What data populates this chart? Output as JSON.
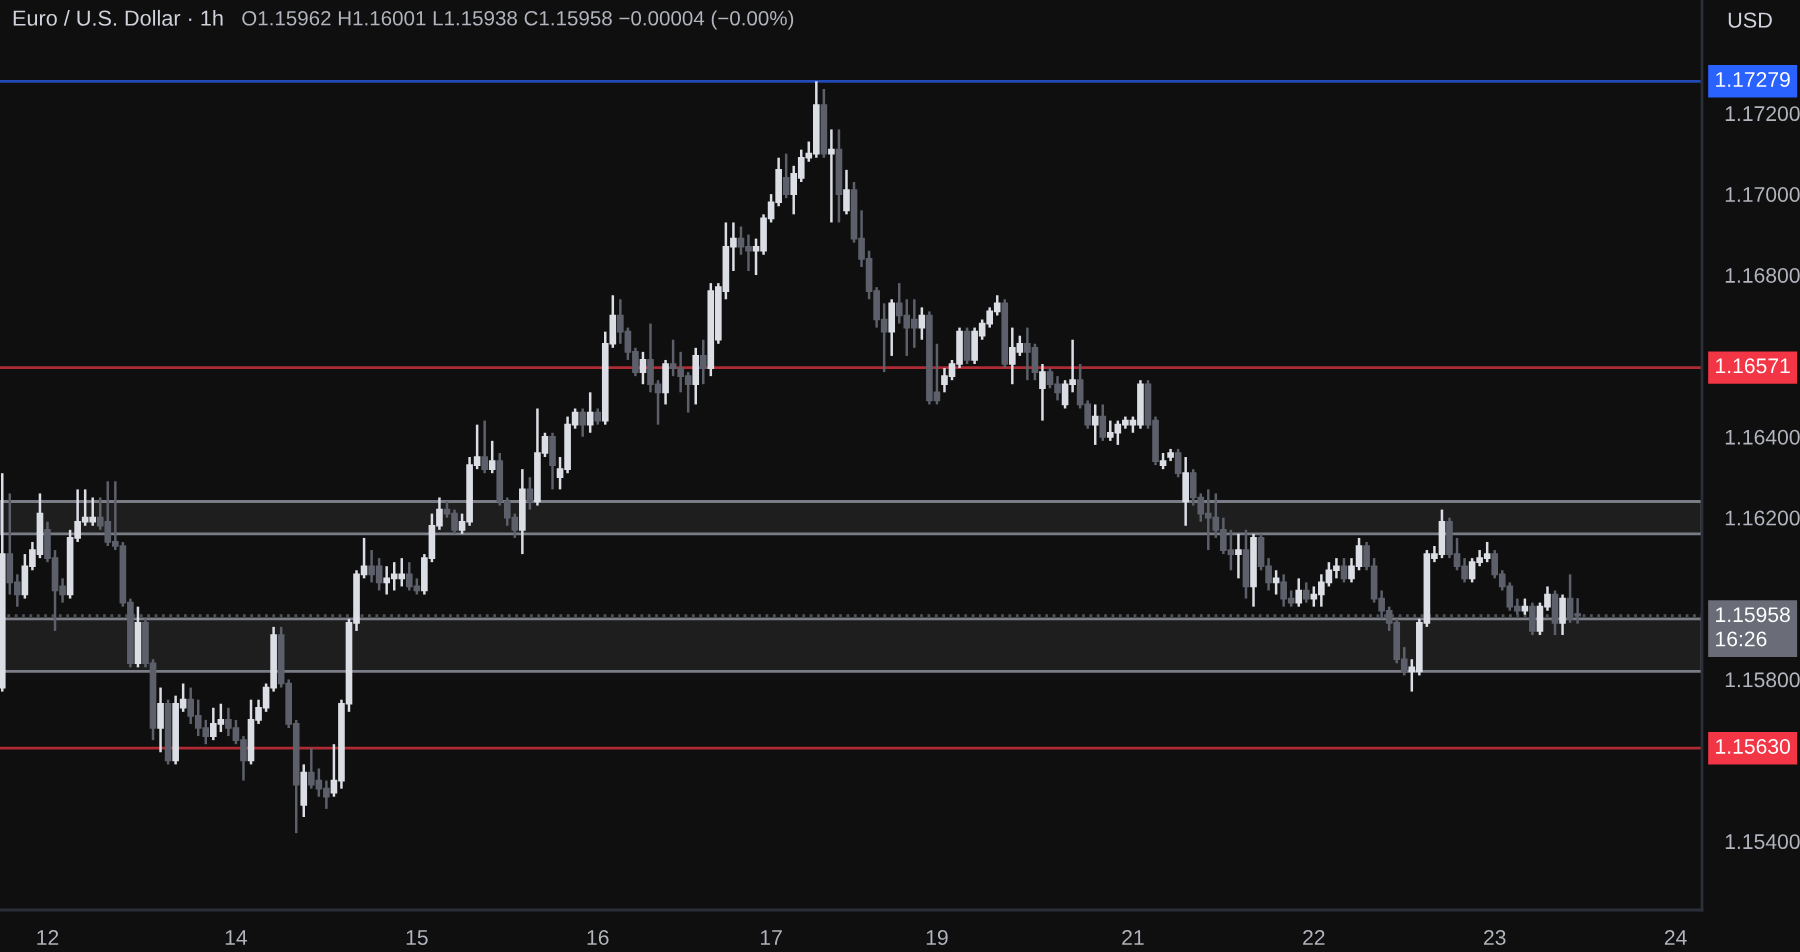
{
  "chart_data": {
    "type": "candlestick",
    "title": "Euro / U.S. Dollar · 1h",
    "subtitle": "O1.15962 H1.16001 L1.15938 C1.15958 −0.00004 (−0.00%)",
    "ylabel": "USD",
    "categories": [
      null,
      null,
      null,
      null,
      null,
      null,
      "12",
      null,
      null,
      null,
      null,
      null,
      null,
      null,
      null,
      null,
      null,
      null,
      null,
      null,
      null,
      null,
      null,
      null,
      null,
      null,
      null,
      null,
      null,
      null,
      null,
      "14",
      null,
      null,
      null,
      null,
      null,
      null,
      null,
      null,
      null,
      null,
      null,
      null,
      null,
      null,
      null,
      null,
      null,
      null,
      null,
      null,
      null,
      null,
      null,
      "15",
      null,
      null,
      null,
      null,
      null,
      null,
      null,
      null,
      null,
      null,
      null,
      null,
      null,
      null,
      null,
      null,
      null,
      null,
      null,
      null,
      null,
      null,
      null,
      "16",
      null,
      null,
      null,
      null,
      null,
      null,
      null,
      null,
      null,
      null,
      null,
      null,
      null,
      null,
      null,
      null,
      null,
      null,
      null,
      null,
      null,
      null,
      "17",
      null,
      null,
      null,
      null,
      null,
      null,
      null,
      null,
      null,
      null,
      null,
      null,
      null,
      null,
      null,
      null,
      null,
      null,
      null,
      null,
      null,
      "19",
      null,
      null,
      null,
      null,
      null,
      null,
      null,
      null,
      null,
      null,
      null,
      null,
      null,
      null,
      null,
      null,
      null,
      null,
      null,
      null,
      null,
      null,
      null,
      null,
      null,
      "21",
      null,
      null,
      null,
      null,
      null,
      null,
      null,
      null,
      null,
      null,
      null,
      null,
      null,
      null,
      null,
      null,
      null,
      null,
      null,
      null,
      null,
      null,
      null,
      "22",
      null,
      null,
      null,
      null,
      null,
      null,
      null,
      null,
      null,
      null,
      null,
      null,
      null,
      null,
      null,
      null,
      null,
      null,
      null,
      null,
      null,
      null,
      null,
      "23",
      null,
      null,
      null,
      null,
      null,
      null,
      null,
      null,
      null,
      null,
      null,
      null,
      null,
      null,
      null,
      null,
      null,
      null,
      null,
      null,
      null,
      null,
      null,
      "24",
      null,
      null,
      null
    ],
    "ohlc": [
      [
        1.1578,
        1.1631,
        1.1577,
        1.1611
      ],
      [
        1.1611,
        1.1626,
        1.1601,
        1.1604
      ],
      [
        1.1604,
        1.1606,
        1.1598,
        1.1601
      ],
      [
        1.1601,
        1.1611,
        1.16,
        1.1608
      ],
      [
        1.1608,
        1.1614,
        1.1607,
        1.1612
      ],
      [
        1.1611,
        1.1626,
        1.161,
        1.1621
      ],
      [
        1.1617,
        1.1619,
        1.1609,
        1.161
      ],
      [
        1.161,
        1.1612,
        1.1592,
        1.1602
      ],
      [
        1.1603,
        1.1605,
        1.1599,
        1.1601
      ],
      [
        1.1601,
        1.1617,
        1.16,
        1.1615
      ],
      [
        1.1615,
        1.1627,
        1.1614,
        1.1619
      ],
      [
        1.1619,
        1.1627,
        1.1618,
        1.162
      ],
      [
        1.1619,
        1.1625,
        1.1618,
        1.162
      ],
      [
        1.162,
        1.1625,
        1.1617,
        1.1618
      ],
      [
        1.1619,
        1.1629,
        1.1613,
        1.1614
      ],
      [
        1.1614,
        1.1629,
        1.1612,
        1.1613
      ],
      [
        1.1613,
        1.1614,
        1.1598,
        1.1599
      ],
      [
        1.1599,
        1.16,
        1.1583,
        1.1584
      ],
      [
        1.1584,
        1.1598,
        1.1583,
        1.1594
      ],
      [
        1.1594,
        1.1595,
        1.1583,
        1.1584
      ],
      [
        1.1584,
        1.1585,
        1.1565,
        1.1568
      ],
      [
        1.1568,
        1.1578,
        1.1562,
        1.1574
      ],
      [
        1.1574,
        1.1575,
        1.1559,
        1.156
      ],
      [
        1.156,
        1.1576,
        1.1559,
        1.1574
      ],
      [
        1.1573,
        1.1579,
        1.1572,
        1.1575
      ],
      [
        1.1575,
        1.1578,
        1.1569,
        1.1571
      ],
      [
        1.1571,
        1.1575,
        1.1566,
        1.1568
      ],
      [
        1.1568,
        1.157,
        1.1564,
        1.1566
      ],
      [
        1.1566,
        1.1573,
        1.1565,
        1.1569
      ],
      [
        1.1569,
        1.1574,
        1.1567,
        1.157
      ],
      [
        1.157,
        1.1573,
        1.1566,
        1.1568
      ],
      [
        1.1568,
        1.157,
        1.1564,
        1.1565
      ],
      [
        1.1565,
        1.1566,
        1.1555,
        1.156
      ],
      [
        1.156,
        1.1575,
        1.1559,
        1.157
      ],
      [
        1.157,
        1.1575,
        1.1569,
        1.1573
      ],
      [
        1.1573,
        1.1579,
        1.1572,
        1.1578
      ],
      [
        1.1578,
        1.1593,
        1.1577,
        1.1591
      ],
      [
        1.1591,
        1.1593,
        1.1578,
        1.1579
      ],
      [
        1.1579,
        1.158,
        1.1568,
        1.1569
      ],
      [
        1.1569,
        1.157,
        1.1542,
        1.1554
      ],
      [
        1.1549,
        1.1559,
        1.1546,
        1.1557
      ],
      [
        1.1557,
        1.1563,
        1.1553,
        1.1554
      ],
      [
        1.1555,
        1.1558,
        1.1551,
        1.1553
      ],
      [
        1.1553,
        1.1555,
        1.1548,
        1.1551
      ],
      [
        1.1552,
        1.1564,
        1.1551,
        1.1555
      ],
      [
        1.1555,
        1.1575,
        1.1553,
        1.1574
      ],
      [
        1.1574,
        1.1595,
        1.1572,
        1.1594
      ],
      [
        1.1594,
        1.1607,
        1.1592,
        1.1606
      ],
      [
        1.1606,
        1.1615,
        1.1605,
        1.1608
      ],
      [
        1.1608,
        1.1612,
        1.1604,
        1.1606
      ],
      [
        1.1608,
        1.161,
        1.1602,
        1.1604
      ],
      [
        1.1604,
        1.1608,
        1.1601,
        1.1605
      ],
      [
        1.1605,
        1.1609,
        1.1602,
        1.1606
      ],
      [
        1.1605,
        1.161,
        1.1603,
        1.1606
      ],
      [
        1.1606,
        1.1609,
        1.1602,
        1.1603
      ],
      [
        1.1603,
        1.1605,
        1.1601,
        1.1602
      ],
      [
        1.1602,
        1.1611,
        1.1601,
        1.161
      ],
      [
        1.161,
        1.1621,
        1.1609,
        1.1618
      ],
      [
        1.1618,
        1.1625,
        1.1617,
        1.1622
      ],
      [
        1.1622,
        1.1624,
        1.162,
        1.1621
      ],
      [
        1.1621,
        1.1622,
        1.1616,
        1.1617
      ],
      [
        1.1617,
        1.1621,
        1.1616,
        1.1619
      ],
      [
        1.1619,
        1.1635,
        1.1618,
        1.1633
      ],
      [
        1.1633,
        1.1643,
        1.1632,
        1.1635
      ],
      [
        1.1635,
        1.1644,
        1.1631,
        1.1632
      ],
      [
        1.1632,
        1.1639,
        1.1631,
        1.1634
      ],
      [
        1.1634,
        1.1636,
        1.1623,
        1.1624
      ],
      [
        1.1624,
        1.1625,
        1.1618,
        1.162
      ],
      [
        1.162,
        1.1621,
        1.1615,
        1.1617
      ],
      [
        1.1617,
        1.1632,
        1.1611,
        1.1627
      ],
      [
        1.1627,
        1.163,
        1.1622,
        1.1624
      ],
      [
        1.1624,
        1.1647,
        1.1623,
        1.1636
      ],
      [
        1.1636,
        1.1641,
        1.1635,
        1.164
      ],
      [
        1.164,
        1.1641,
        1.1627,
        1.1633
      ],
      [
        1.163,
        1.1635,
        1.1627,
        1.1632
      ],
      [
        1.1632,
        1.1645,
        1.1631,
        1.1643
      ],
      [
        1.1643,
        1.1647,
        1.1642,
        1.1646
      ],
      [
        1.1646,
        1.1647,
        1.164,
        1.1643
      ],
      [
        1.1643,
        1.1651,
        1.1641,
        1.1646
      ],
      [
        1.1646,
        1.1647,
        1.1643,
        1.1644
      ],
      [
        1.1644,
        1.1666,
        1.1643,
        1.1663
      ],
      [
        1.1663,
        1.1675,
        1.1662,
        1.167
      ],
      [
        1.167,
        1.1674,
        1.1663,
        1.1666
      ],
      [
        1.1666,
        1.1667,
        1.1659,
        1.1661
      ],
      [
        1.1661,
        1.1662,
        1.1655,
        1.1656
      ],
      [
        1.1656,
        1.1661,
        1.1653,
        1.1659
      ],
      [
        1.1659,
        1.1668,
        1.1651,
        1.1653
      ],
      [
        1.1653,
        1.1654,
        1.1643,
        1.1651
      ],
      [
        1.1651,
        1.1659,
        1.1648,
        1.1658
      ],
      [
        1.1658,
        1.1664,
        1.1655,
        1.1657
      ],
      [
        1.1657,
        1.1661,
        1.1651,
        1.1655
      ],
      [
        1.1655,
        1.1656,
        1.1646,
        1.1653
      ],
      [
        1.1653,
        1.1662,
        1.1648,
        1.166
      ],
      [
        1.166,
        1.1664,
        1.1653,
        1.1657
      ],
      [
        1.1657,
        1.1678,
        1.1655,
        1.1676
      ],
      [
        1.1664,
        1.1678,
        1.1663,
        1.1677
      ],
      [
        1.1676,
        1.1693,
        1.1674,
        1.1687
      ],
      [
        1.1687,
        1.1693,
        1.1681,
        1.1689
      ],
      [
        1.1689,
        1.1692,
        1.1685,
        1.1687
      ],
      [
        1.1687,
        1.169,
        1.1681,
        1.1686
      ],
      [
        1.1686,
        1.1689,
        1.168,
        1.1687
      ],
      [
        1.1686,
        1.1695,
        1.1685,
        1.1694
      ],
      [
        1.1694,
        1.17,
        1.1693,
        1.1698
      ],
      [
        1.1698,
        1.1709,
        1.1697,
        1.1706
      ],
      [
        1.1704,
        1.171,
        1.1699,
        1.17
      ],
      [
        1.17,
        1.1707,
        1.1695,
        1.1705
      ],
      [
        1.1704,
        1.1711,
        1.1703,
        1.1709
      ],
      [
        1.1709,
        1.1713,
        1.1708,
        1.171
      ],
      [
        1.171,
        1.17279,
        1.1709,
        1.1722
      ],
      [
        1.1722,
        1.1726,
        1.1709,
        1.171
      ],
      [
        1.171,
        1.1716,
        1.1693,
        1.1711
      ],
      [
        1.1711,
        1.1716,
        1.1693,
        1.17
      ],
      [
        1.1696,
        1.1706,
        1.1695,
        1.1701
      ],
      [
        1.1701,
        1.1703,
        1.1688,
        1.1689
      ],
      [
        1.1689,
        1.1696,
        1.1682,
        1.1684
      ],
      [
        1.1684,
        1.1686,
        1.1674,
        1.1676
      ],
      [
        1.1676,
        1.1677,
        1.1667,
        1.1669
      ],
      [
        1.1669,
        1.1673,
        1.1656,
        1.1666
      ],
      [
        1.1666,
        1.1674,
        1.166,
        1.1673
      ],
      [
        1.1673,
        1.1678,
        1.1668,
        1.167
      ],
      [
        1.167,
        1.1674,
        1.166,
        1.1667
      ],
      [
        1.1669,
        1.1674,
        1.1662,
        1.1667
      ],
      [
        1.1667,
        1.1672,
        1.1664,
        1.167
      ],
      [
        1.167,
        1.1671,
        1.1648,
        1.1649
      ],
      [
        1.1651,
        1.1663,
        1.1648,
        1.1649
      ],
      [
        1.1653,
        1.1657,
        1.1651,
        1.1655
      ],
      [
        1.1655,
        1.1659,
        1.1654,
        1.1658
      ],
      [
        1.1658,
        1.1667,
        1.1657,
        1.1666
      ],
      [
        1.1666,
        1.1667,
        1.1658,
        1.1659
      ],
      [
        1.1659,
        1.1667,
        1.1658,
        1.1666
      ],
      [
        1.1665,
        1.1669,
        1.1664,
        1.1668
      ],
      [
        1.1668,
        1.1672,
        1.1667,
        1.1671
      ],
      [
        1.1671,
        1.1675,
        1.167,
        1.1673
      ],
      [
        1.1673,
        1.1674,
        1.1657,
        1.1658
      ],
      [
        1.1658,
        1.1667,
        1.1653,
        1.1662
      ],
      [
        1.1661,
        1.1665,
        1.166,
        1.1663
      ],
      [
        1.1663,
        1.1667,
        1.1654,
        1.1661
      ],
      [
        1.1662,
        1.1663,
        1.1654,
        1.1656
      ],
      [
        1.1652,
        1.1658,
        1.1644,
        1.1656
      ],
      [
        1.1656,
        1.1657,
        1.1652,
        1.1653
      ],
      [
        1.1653,
        1.1655,
        1.1649,
        1.1651
      ],
      [
        1.1648,
        1.1654,
        1.1647,
        1.1653
      ],
      [
        1.1653,
        1.1664,
        1.1651,
        1.1654
      ],
      [
        1.1654,
        1.1658,
        1.1647,
        1.1648
      ],
      [
        1.1648,
        1.1649,
        1.1642,
        1.1643
      ],
      [
        1.1643,
        1.1648,
        1.1638,
        1.1645
      ],
      [
        1.1645,
        1.1648,
        1.1639,
        1.164
      ],
      [
        1.164,
        1.1644,
        1.1639,
        1.1641
      ],
      [
        1.1641,
        1.1644,
        1.1638,
        1.1643
      ],
      [
        1.1643,
        1.1645,
        1.1642,
        1.1644
      ],
      [
        1.1643,
        1.1645,
        1.1641,
        1.1644
      ],
      [
        1.1643,
        1.1654,
        1.1642,
        1.1653
      ],
      [
        1.1653,
        1.1654,
        1.1642,
        1.1643
      ],
      [
        1.1644,
        1.1645,
        1.1633,
        1.1634
      ],
      [
        1.1633,
        1.1636,
        1.1632,
        1.1634
      ],
      [
        1.1635,
        1.1637,
        1.1634,
        1.1636
      ],
      [
        1.1636,
        1.1637,
        1.163,
        1.1631
      ],
      [
        1.1624,
        1.1635,
        1.1618,
        1.1631
      ],
      [
        1.1631,
        1.1632,
        1.1623,
        1.1625
      ],
      [
        1.1625,
        1.1626,
        1.1619,
        1.1621
      ],
      [
        1.1621,
        1.1627,
        1.1612,
        1.162
      ],
      [
        1.162,
        1.1626,
        1.1615,
        1.1617
      ],
      [
        1.1617,
        1.162,
        1.1611,
        1.1612
      ],
      [
        1.1612,
        1.1617,
        1.1607,
        1.1611
      ],
      [
        1.1611,
        1.1616,
        1.1605,
        1.1612
      ],
      [
        1.1612,
        1.1617,
        1.16,
        1.1603
      ],
      [
        1.1603,
        1.1616,
        1.1598,
        1.1615
      ],
      [
        1.1615,
        1.1616,
        1.1607,
        1.1608
      ],
      [
        1.1608,
        1.161,
        1.1602,
        1.1604
      ],
      [
        1.1604,
        1.1607,
        1.1601,
        1.1605
      ],
      [
        1.1604,
        1.1606,
        1.1598,
        1.16
      ],
      [
        1.16,
        1.1602,
        1.1598,
        1.1599
      ],
      [
        1.1599,
        1.1605,
        1.1598,
        1.1602
      ],
      [
        1.1602,
        1.1604,
        1.1599,
        1.16
      ],
      [
        1.16,
        1.1603,
        1.1598,
        1.1601
      ],
      [
        1.1601,
        1.1606,
        1.1598,
        1.1604
      ],
      [
        1.1604,
        1.1609,
        1.1603,
        1.1607
      ],
      [
        1.1607,
        1.161,
        1.1605,
        1.1608
      ],
      [
        1.1608,
        1.161,
        1.1604,
        1.1605
      ],
      [
        1.1605,
        1.161,
        1.1604,
        1.1608
      ],
      [
        1.1608,
        1.1615,
        1.1607,
        1.1613
      ],
      [
        1.1613,
        1.1614,
        1.1607,
        1.1608
      ],
      [
        1.1608,
        1.161,
        1.1599,
        1.16
      ],
      [
        1.16,
        1.1602,
        1.1595,
        1.1597
      ],
      [
        1.1597,
        1.1598,
        1.1592,
        1.1594
      ],
      [
        1.1594,
        1.1595,
        1.1584,
        1.1585
      ],
      [
        1.1585,
        1.1588,
        1.1581,
        1.1582
      ],
      [
        1.1582,
        1.1585,
        1.1577,
        1.1583
      ],
      [
        1.1582,
        1.1595,
        1.1581,
        1.1594
      ],
      [
        1.1594,
        1.1612,
        1.1593,
        1.1611
      ],
      [
        1.161,
        1.1613,
        1.1609,
        1.1611
      ],
      [
        1.1611,
        1.1622,
        1.161,
        1.1619
      ],
      [
        1.1619,
        1.162,
        1.161,
        1.1611
      ],
      [
        1.1611,
        1.1615,
        1.1607,
        1.1608
      ],
      [
        1.1608,
        1.161,
        1.1604,
        1.1605
      ],
      [
        1.1605,
        1.161,
        1.1604,
        1.1609
      ],
      [
        1.1609,
        1.1612,
        1.1608,
        1.161
      ],
      [
        1.161,
        1.1614,
        1.1609,
        1.1611
      ],
      [
        1.1611,
        1.1612,
        1.1605,
        1.1606
      ],
      [
        1.1606,
        1.1607,
        1.1602,
        1.1603
      ],
      [
        1.1603,
        1.1604,
        1.1597,
        1.1598
      ],
      [
        1.1598,
        1.16,
        1.1596,
        1.1597
      ],
      [
        1.1597,
        1.16,
        1.1596,
        1.1598
      ],
      [
        1.1598,
        1.1599,
        1.1591,
        1.1592
      ],
      [
        1.1592,
        1.1599,
        1.1591,
        1.1598
      ],
      [
        1.1598,
        1.1603,
        1.1597,
        1.1601
      ],
      [
        1.1601,
        1.1602,
        1.1591,
        1.1594
      ],
      [
        1.1594,
        1.1601,
        1.1591,
        1.16
      ],
      [
        1.16,
        1.1606,
        1.1594,
        1.1595
      ],
      [
        1.15962,
        1.16001,
        1.15938,
        1.15958
      ],
      null,
      null,
      null,
      null,
      null,
      null,
      null,
      null,
      null,
      null,
      null,
      null,
      null,
      null,
      null,
      null
    ],
    "colors": [
      "#dcdee5",
      "#5d606b",
      "#5d606b",
      "#dcdee5",
      "#dcdee5",
      "#dcdee5",
      "#5d606b",
      "#5d606b",
      "#5d606b",
      "#dcdee5",
      "#dcdee5",
      "#dcdee5",
      "#dcdee5",
      "#5d606b",
      "#5d606b",
      "#5d606b",
      "#5d606b",
      "#5d606b",
      "#dcdee5",
      "#5d606b",
      "#5d606b",
      "#dcdee5",
      "#5d606b",
      "#dcdee5",
      "#dcdee5",
      "#5d606b",
      "#5d606b",
      "#5d606b",
      "#dcdee5",
      "#dcdee5",
      "#5d606b",
      "#5d606b",
      "#5d606b",
      "#dcdee5",
      "#dcdee5",
      "#dcdee5",
      "#dcdee5",
      "#5d606b",
      "#5d606b",
      "#5d606b",
      "#dcdee5",
      "#5d606b",
      "#5d606b",
      "#5d606b",
      "#dcdee5",
      "#dcdee5",
      "#dcdee5",
      "#dcdee5",
      "#dcdee5",
      "#5d606b",
      "#5d606b",
      "#dcdee5",
      "#dcdee5",
      "#dcdee5",
      "#5d606b",
      "#5d606b",
      "#dcdee5",
      "#dcdee5",
      "#dcdee5",
      "#5d606b",
      "#5d606b",
      "#dcdee5",
      "#dcdee5",
      "#dcdee5",
      "#5d606b",
      "#dcdee5",
      "#5d606b",
      "#5d606b",
      "#5d606b",
      "#dcdee5",
      "#5d606b",
      "#dcdee5",
      "#dcdee5",
      "#5d606b",
      "#dcdee5",
      "#dcdee5",
      "#dcdee5",
      "#5d606b",
      "#dcdee5",
      "#5d606b",
      "#dcdee5",
      "#dcdee5",
      "#5d606b",
      "#5d606b",
      "#5d606b",
      "#dcdee5",
      "#5d606b",
      "#5d606b",
      "#dcdee5",
      "#5d606b",
      "#5d606b",
      "#5d606b",
      "#dcdee5",
      "#5d606b",
      "#dcdee5",
      "#dcdee5",
      "#dcdee5",
      "#dcdee5",
      "#5d606b",
      "#5d606b",
      "#dcdee5",
      "#dcdee5",
      "#dcdee5",
      "#dcdee5",
      "#5d606b",
      "#dcdee5",
      "#dcdee5",
      "#dcdee5",
      "#dcdee5",
      "#5d606b",
      "#dcdee5",
      "#5d606b",
      "#dcdee5",
      "#5d606b",
      "#5d606b",
      "#5d606b",
      "#5d606b",
      "#5d606b",
      "#dcdee5",
      "#5d606b",
      "#5d606b",
      "#5d606b",
      "#dcdee5",
      "#5d606b",
      "#5d606b",
      "#dcdee5",
      "#dcdee5",
      "#dcdee5",
      "#5d606b",
      "#dcdee5",
      "#dcdee5",
      "#dcdee5",
      "#dcdee5",
      "#5d606b",
      "#dcdee5",
      "#dcdee5",
      "#5d606b",
      "#5d606b",
      "#dcdee5",
      "#5d606b",
      "#5d606b",
      "#dcdee5",
      "#dcdee5",
      "#5d606b",
      "#5d606b",
      "#dcdee5",
      "#5d606b",
      "#dcdee5",
      "#dcdee5",
      "#dcdee5",
      "#dcdee5",
      "#dcdee5",
      "#5d606b",
      "#5d606b",
      "#dcdee5",
      "#dcdee5",
      "#5d606b",
      "#dcdee5",
      "#5d606b",
      "#5d606b",
      "#5d606b",
      "#5d606b",
      "#5d606b",
      "#5d606b",
      "#dcdee5",
      "#5d606b",
      "#dcdee5",
      "#5d606b",
      "#5d606b",
      "#dcdee5",
      "#5d606b",
      "#5d606b",
      "#dcdee5",
      "#5d606b",
      "#dcdee5",
      "#dcdee5",
      "#dcdee5",
      "#dcdee5",
      "#5d606b",
      "#dcdee5",
      "#dcdee5",
      "#5d606b",
      "#5d606b",
      "#5d606b",
      "#5d606b",
      "#5d606b",
      "#5d606b",
      "#dcdee5",
      "#dcdee5",
      "#dcdee5",
      "#dcdee5",
      "#dcdee5",
      "#5d606b",
      "#5d606b",
      "#5d606b",
      "#dcdee5",
      "#dcdee5",
      "#dcdee5",
      "#5d606b",
      "#5d606b",
      "#5d606b",
      "#5d606b",
      "#dcdee5",
      "#5d606b",
      "#dcdee5",
      "#dcdee5",
      "#5d606b",
      "#dcdee5",
      "#5d606b",
      "#5d606b",
      null,
      null,
      null,
      null,
      null,
      null,
      null,
      null,
      null,
      null,
      null,
      null,
      null,
      null,
      null,
      null
    ],
    "ylim": [
      1.1523,
      1.1748
    ],
    "yticks": [
      {
        "value": 1.154,
        "label": "1.15400"
      },
      {
        "value": 1.158,
        "label": "1.15800"
      },
      {
        "value": 1.162,
        "label": "1.16200"
      },
      {
        "value": 1.164,
        "label": "1.16400"
      },
      {
        "value": 1.168,
        "label": "1.16800"
      },
      {
        "value": 1.17,
        "label": "1.17000"
      },
      {
        "value": 1.172,
        "label": "1.17200"
      }
    ],
    "bands": [
      {
        "axis": "y",
        "from": 1.1582,
        "to": 1.1595,
        "color": "#1e1e1e"
      },
      {
        "axis": "y",
        "from": 1.1616,
        "to": 1.1624,
        "color": "#1e1e1e"
      }
    ],
    "ref_lines": [
      {
        "axis": "y",
        "value": 1.17279,
        "label": "1.17279",
        "color": "#2962ff"
      },
      {
        "axis": "y",
        "value": 1.16571,
        "label": "1.16571",
        "color": "#f23645"
      },
      {
        "axis": "y",
        "value": 1.15958,
        "label": "1.15958\n16:26",
        "color": "#6a6d78",
        "line_style": "dotted"
      },
      {
        "axis": "y",
        "value": 1.1563,
        "label": "1.15630",
        "color": "#f23645"
      }
    ]
  }
}
